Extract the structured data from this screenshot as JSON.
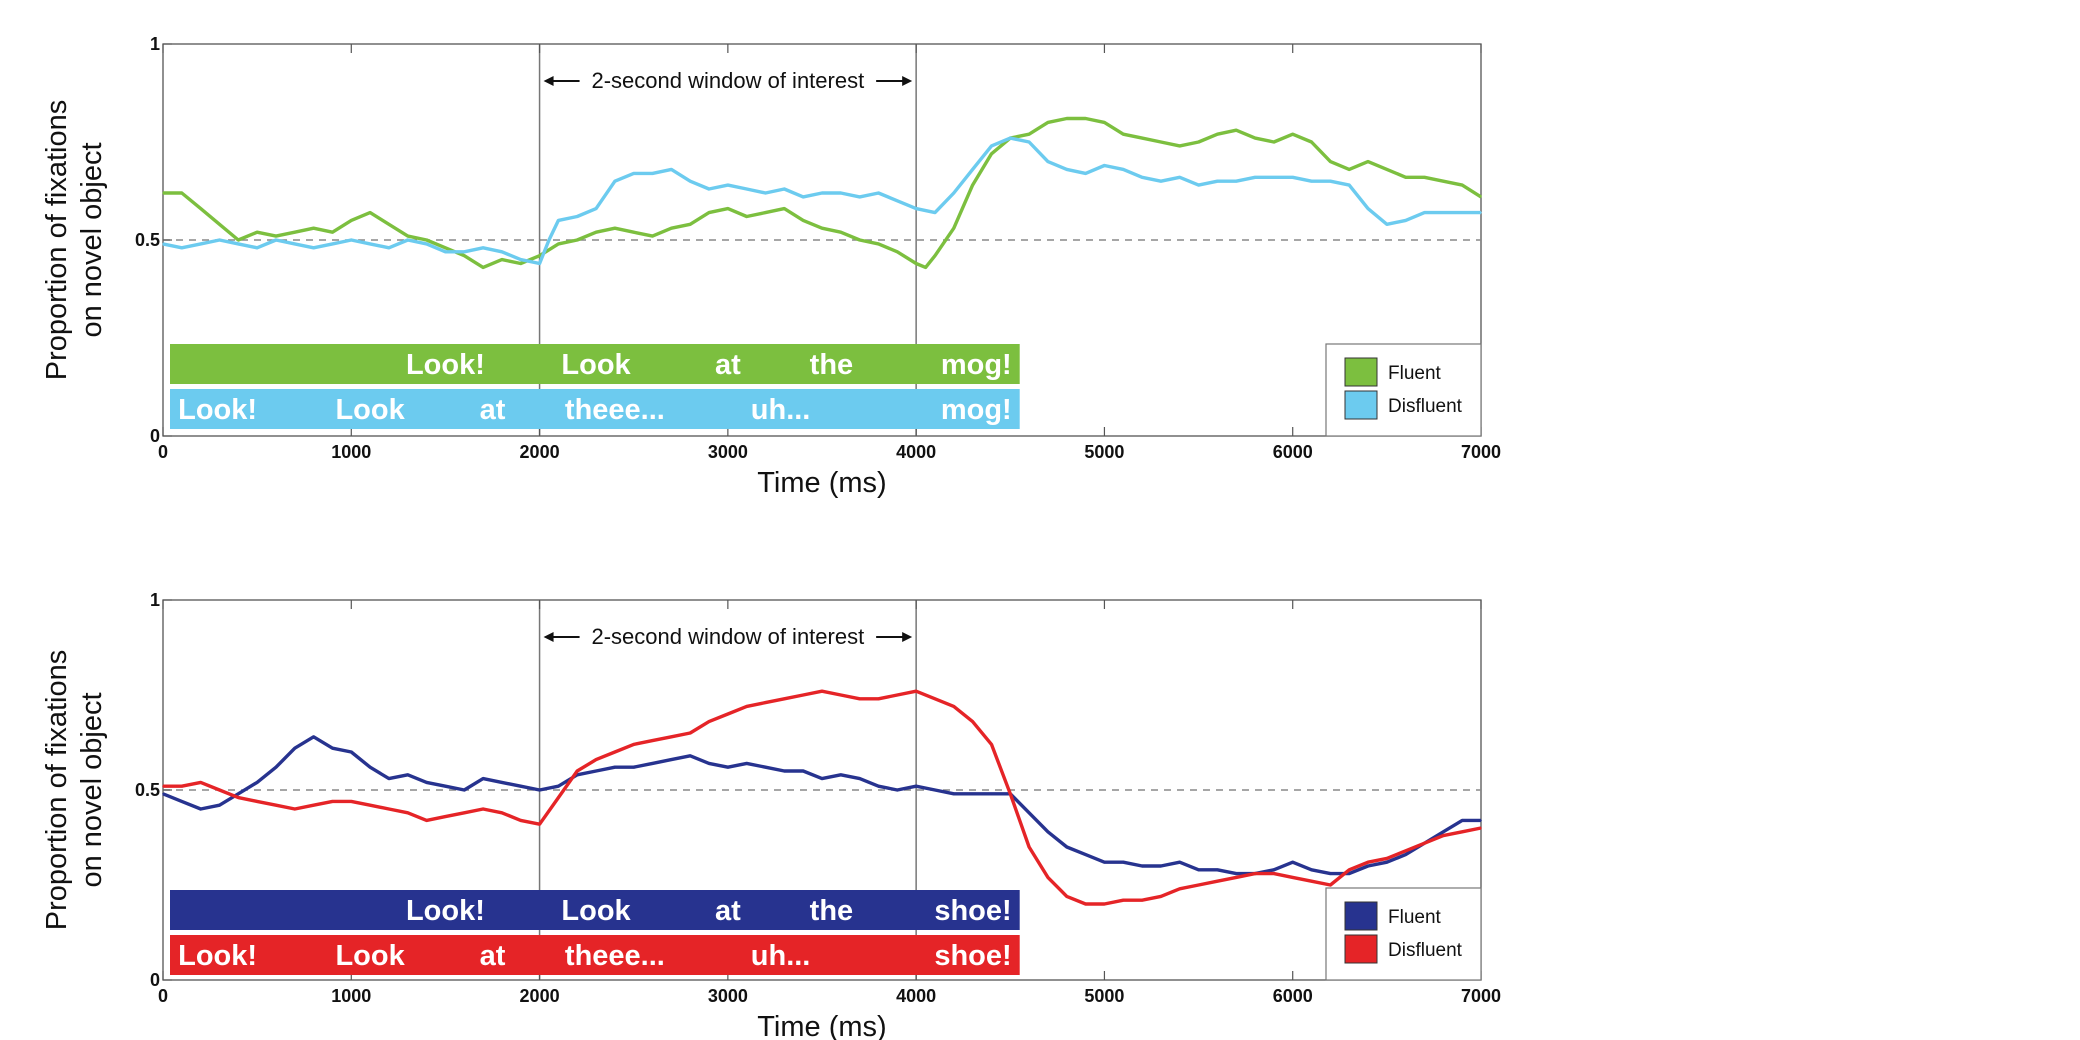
{
  "chart_data": [
    {
      "type": "line",
      "xlabel": "Time (ms)",
      "ylabel": [
        "Proportion of fixations",
        "on novel object"
      ],
      "xlim": [
        0,
        7000
      ],
      "ylim": [
        0,
        1
      ],
      "xticks": [
        "0",
        "1000",
        "2000",
        "3000",
        "4000",
        "5000",
        "6000",
        "7000"
      ],
      "yticks": [
        "0",
        "0.5",
        "1"
      ],
      "reference_line": 0.5,
      "window": {
        "start": 2000,
        "end": 4000,
        "label": "2-second window of interest"
      },
      "legend_placement": "bottom-right",
      "series": [
        {
          "name": "Fluent",
          "color": "#7cbf3f",
          "x": [
            0,
            100,
            200,
            300,
            400,
            500,
            600,
            700,
            800,
            900,
            1000,
            1100,
            1200,
            1300,
            1400,
            1500,
            1600,
            1700,
            1800,
            1900,
            2000,
            2100,
            2200,
            2300,
            2400,
            2500,
            2600,
            2700,
            2800,
            2900,
            3000,
            3100,
            3200,
            3300,
            3400,
            3500,
            3600,
            3700,
            3800,
            3900,
            4000,
            4050,
            4100,
            4200,
            4300,
            4400,
            4500,
            4600,
            4700,
            4800,
            4900,
            5000,
            5100,
            5200,
            5300,
            5400,
            5500,
            5600,
            5700,
            5800,
            5900,
            6000,
            6100,
            6200,
            6300,
            6400,
            6500,
            6600,
            6700,
            6800,
            6900,
            7000
          ],
          "y": [
            0.62,
            0.62,
            0.58,
            0.54,
            0.5,
            0.52,
            0.51,
            0.52,
            0.53,
            0.52,
            0.55,
            0.57,
            0.54,
            0.51,
            0.5,
            0.48,
            0.46,
            0.43,
            0.45,
            0.44,
            0.46,
            0.49,
            0.5,
            0.52,
            0.53,
            0.52,
            0.51,
            0.53,
            0.54,
            0.57,
            0.58,
            0.56,
            0.57,
            0.58,
            0.55,
            0.53,
            0.52,
            0.5,
            0.49,
            0.47,
            0.44,
            0.43,
            0.46,
            0.53,
            0.64,
            0.72,
            0.76,
            0.77,
            0.8,
            0.81,
            0.81,
            0.8,
            0.77,
            0.76,
            0.75,
            0.74,
            0.75,
            0.77,
            0.78,
            0.76,
            0.75,
            0.77,
            0.75,
            0.7,
            0.68,
            0.7,
            0.68,
            0.66,
            0.66,
            0.65,
            0.64,
            0.61
          ]
        },
        {
          "name": "Disfluent",
          "color": "#6ccbef",
          "x": [
            0,
            100,
            200,
            300,
            400,
            500,
            600,
            700,
            800,
            900,
            1000,
            1100,
            1200,
            1300,
            1400,
            1500,
            1600,
            1700,
            1800,
            1900,
            2000,
            2050,
            2100,
            2200,
            2300,
            2400,
            2500,
            2600,
            2700,
            2800,
            2900,
            3000,
            3100,
            3200,
            3300,
            3400,
            3500,
            3600,
            3700,
            3800,
            3900,
            4000,
            4100,
            4200,
            4300,
            4400,
            4500,
            4600,
            4700,
            4800,
            4900,
            5000,
            5100,
            5200,
            5300,
            5400,
            5500,
            5600,
            5700,
            5800,
            5900,
            6000,
            6100,
            6200,
            6300,
            6400,
            6500,
            6600,
            6700,
            6800,
            6900,
            7000
          ],
          "y": [
            0.49,
            0.48,
            0.49,
            0.5,
            0.49,
            0.48,
            0.5,
            0.49,
            0.48,
            0.49,
            0.5,
            0.49,
            0.48,
            0.5,
            0.49,
            0.47,
            0.47,
            0.48,
            0.47,
            0.45,
            0.44,
            0.5,
            0.55,
            0.56,
            0.58,
            0.65,
            0.67,
            0.67,
            0.68,
            0.65,
            0.63,
            0.64,
            0.63,
            0.62,
            0.63,
            0.61,
            0.62,
            0.62,
            0.61,
            0.62,
            0.6,
            0.58,
            0.57,
            0.62,
            0.68,
            0.74,
            0.76,
            0.75,
            0.7,
            0.68,
            0.67,
            0.69,
            0.68,
            0.66,
            0.65,
            0.66,
            0.64,
            0.65,
            0.65,
            0.66,
            0.66,
            0.66,
            0.65,
            0.65,
            0.64,
            0.58,
            0.54,
            0.55,
            0.57,
            0.57,
            0.57,
            0.57
          ]
        }
      ],
      "word_bars": [
        {
          "series": "Fluent",
          "color": "#7cbf3f",
          "words": [
            {
              "text": "Look!",
              "t": 1500
            },
            {
              "text": "Look",
              "t": 2300
            },
            {
              "text": "at",
              "t": 3000
            },
            {
              "text": "the",
              "t": 3550
            },
            {
              "text": "mog!",
              "t": 4300
            }
          ]
        },
        {
          "series": "Disfluent",
          "color": "#6ccbef",
          "words": [
            {
              "text": "Look!",
              "t": 290
            },
            {
              "text": "Look",
              "t": 1100
            },
            {
              "text": "at",
              "t": 1750
            },
            {
              "text": "theee...",
              "t": 2400
            },
            {
              "text": "uh...",
              "t": 3280
            },
            {
              "text": "mog!",
              "t": 4300
            }
          ]
        }
      ]
    },
    {
      "type": "line",
      "xlabel": "Time (ms)",
      "ylabel": [
        "Proportion of fixations",
        "on novel object"
      ],
      "xlim": [
        0,
        7000
      ],
      "ylim": [
        0,
        1
      ],
      "xticks": [
        "0",
        "1000",
        "2000",
        "3000",
        "4000",
        "5000",
        "6000",
        "7000"
      ],
      "yticks": [
        "0",
        "0.5",
        "1"
      ],
      "reference_line": 0.5,
      "window": {
        "start": 2000,
        "end": 4000,
        "label": "2-second window of interest"
      },
      "legend_placement": "bottom-right",
      "series": [
        {
          "name": "Fluent",
          "color": "#27338f",
          "x": [
            0,
            100,
            200,
            300,
            400,
            500,
            600,
            700,
            800,
            900,
            1000,
            1100,
            1200,
            1300,
            1400,
            1500,
            1600,
            1700,
            1800,
            1900,
            2000,
            2100,
            2200,
            2300,
            2400,
            2500,
            2600,
            2700,
            2800,
            2900,
            3000,
            3100,
            3200,
            3300,
            3400,
            3500,
            3600,
            3700,
            3800,
            3900,
            4000,
            4100,
            4200,
            4300,
            4400,
            4500,
            4600,
            4700,
            4800,
            4900,
            5000,
            5100,
            5200,
            5300,
            5400,
            5500,
            5600,
            5700,
            5800,
            5900,
            6000,
            6100,
            6200,
            6300,
            6400,
            6500,
            6600,
            6700,
            6800,
            6900,
            7000
          ],
          "y": [
            0.49,
            0.47,
            0.45,
            0.46,
            0.49,
            0.52,
            0.56,
            0.61,
            0.64,
            0.61,
            0.6,
            0.56,
            0.53,
            0.54,
            0.52,
            0.51,
            0.5,
            0.53,
            0.52,
            0.51,
            0.5,
            0.51,
            0.54,
            0.55,
            0.56,
            0.56,
            0.57,
            0.58,
            0.59,
            0.57,
            0.56,
            0.57,
            0.56,
            0.55,
            0.55,
            0.53,
            0.54,
            0.53,
            0.51,
            0.5,
            0.51,
            0.5,
            0.49,
            0.49,
            0.49,
            0.49,
            0.44,
            0.39,
            0.35,
            0.33,
            0.31,
            0.31,
            0.3,
            0.3,
            0.31,
            0.29,
            0.29,
            0.28,
            0.28,
            0.29,
            0.31,
            0.29,
            0.28,
            0.28,
            0.3,
            0.31,
            0.33,
            0.36,
            0.39,
            0.42,
            0.42
          ]
        },
        {
          "name": "Disfluent",
          "color": "#e52427",
          "x": [
            0,
            100,
            200,
            300,
            400,
            500,
            600,
            700,
            800,
            900,
            1000,
            1100,
            1200,
            1300,
            1400,
            1500,
            1600,
            1700,
            1800,
            1900,
            2000,
            2100,
            2200,
            2300,
            2400,
            2500,
            2600,
            2700,
            2800,
            2900,
            3000,
            3100,
            3200,
            3300,
            3400,
            3500,
            3600,
            3700,
            3800,
            3900,
            4000,
            4100,
            4200,
            4300,
            4400,
            4500,
            4600,
            4700,
            4800,
            4900,
            5000,
            5100,
            5200,
            5300,
            5400,
            5500,
            5600,
            5700,
            5800,
            5900,
            6000,
            6100,
            6200,
            6300,
            6400,
            6500,
            6600,
            6700,
            6800,
            6900,
            7000
          ],
          "y": [
            0.51,
            0.51,
            0.52,
            0.5,
            0.48,
            0.47,
            0.46,
            0.45,
            0.46,
            0.47,
            0.47,
            0.46,
            0.45,
            0.44,
            0.42,
            0.43,
            0.44,
            0.45,
            0.44,
            0.42,
            0.41,
            0.48,
            0.55,
            0.58,
            0.6,
            0.62,
            0.63,
            0.64,
            0.65,
            0.68,
            0.7,
            0.72,
            0.73,
            0.74,
            0.75,
            0.76,
            0.75,
            0.74,
            0.74,
            0.75,
            0.76,
            0.74,
            0.72,
            0.68,
            0.62,
            0.49,
            0.35,
            0.27,
            0.22,
            0.2,
            0.2,
            0.21,
            0.21,
            0.22,
            0.24,
            0.25,
            0.26,
            0.27,
            0.28,
            0.28,
            0.27,
            0.26,
            0.25,
            0.29,
            0.31,
            0.32,
            0.34,
            0.36,
            0.38,
            0.39,
            0.4
          ]
        }
      ],
      "word_bars": [
        {
          "series": "Fluent",
          "color": "#27338f",
          "words": [
            {
              "text": "Look!",
              "t": 1500
            },
            {
              "text": "Look",
              "t": 2300
            },
            {
              "text": "at",
              "t": 3000
            },
            {
              "text": "the",
              "t": 3550
            },
            {
              "text": "shoe!",
              "t": 4270
            }
          ]
        },
        {
          "series": "Disfluent",
          "color": "#e52427",
          "words": [
            {
              "text": "Look!",
              "t": 290
            },
            {
              "text": "Look",
              "t": 1100
            },
            {
              "text": "at",
              "t": 1750
            },
            {
              "text": "theee...",
              "t": 2400
            },
            {
              "text": "uh...",
              "t": 3280
            },
            {
              "text": "shoe!",
              "t": 4270
            }
          ]
        }
      ]
    }
  ]
}
